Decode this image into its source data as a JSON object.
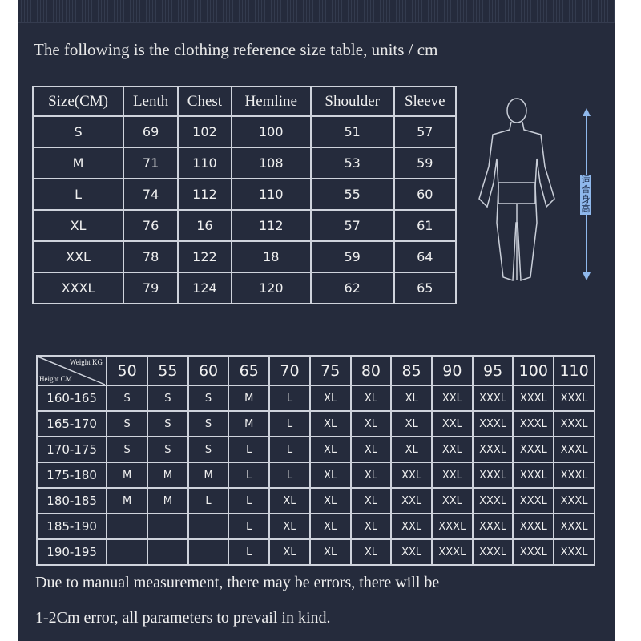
{
  "title": "The following is the clothing reference size table, units / cm",
  "size_table": {
    "headers": [
      "Size(CM)",
      "Lenth",
      "Chest",
      "Hemline",
      "Shoulder",
      "Sleeve"
    ],
    "rows": [
      [
        "S",
        "69",
        "102",
        "100",
        "51",
        "57"
      ],
      [
        "M",
        "71",
        "110",
        "108",
        "53",
        "59"
      ],
      [
        "L",
        "74",
        "112",
        "110",
        "55",
        "60"
      ],
      [
        "XL",
        "76",
        "16",
        "112",
        "57",
        "61"
      ],
      [
        "XXL",
        "78",
        "122",
        "18",
        "59",
        "64"
      ],
      [
        "XXXL",
        "79",
        "124",
        "120",
        "62",
        "65"
      ]
    ]
  },
  "figure": {
    "height_label": "适合身高",
    "arrow_color": "#8fb8ec"
  },
  "fit_table": {
    "weight_label": "Weight KG",
    "height_label": "Height CM",
    "weights": [
      "50",
      "55",
      "60",
      "65",
      "70",
      "75",
      "80",
      "85",
      "90",
      "95",
      "100",
      "110"
    ],
    "rows": [
      {
        "height": "160-165",
        "sizes": [
          "S",
          "S",
          "S",
          "M",
          "L",
          "XL",
          "XL",
          "XL",
          "XXL",
          "XXXL",
          "XXXL",
          "XXXL"
        ]
      },
      {
        "height": "165-170",
        "sizes": [
          "S",
          "S",
          "S",
          "M",
          "L",
          "XL",
          "XL",
          "XL",
          "XXL",
          "XXXL",
          "XXXL",
          "XXXL"
        ]
      },
      {
        "height": "170-175",
        "sizes": [
          "S",
          "S",
          "S",
          "L",
          "L",
          "XL",
          "XL",
          "XL",
          "XXL",
          "XXXL",
          "XXXL",
          "XXXL"
        ]
      },
      {
        "height": "175-180",
        "sizes": [
          "M",
          "M",
          "M",
          "L",
          "L",
          "XL",
          "XL",
          "XXL",
          "XXL",
          "XXXL",
          "XXXL",
          "XXXL"
        ]
      },
      {
        "height": "180-185",
        "sizes": [
          "M",
          "M",
          "L",
          "L",
          "XL",
          "XL",
          "XL",
          "XXL",
          "XXL",
          "XXXL",
          "XXXL",
          "XXXL"
        ]
      },
      {
        "height": "185-190",
        "sizes": [
          "",
          "",
          "",
          "L",
          "XL",
          "XL",
          "XL",
          "XXL",
          "XXXL",
          "XXXL",
          "XXXL",
          "XXXL"
        ]
      },
      {
        "height": "190-195",
        "sizes": [
          "",
          "",
          "",
          "L",
          "XL",
          "XL",
          "XL",
          "XXL",
          "XXXL",
          "XXXL",
          "XXXL",
          "XXXL"
        ]
      }
    ]
  },
  "note": {
    "line1": "Due to manual measurement, there may be errors, there will be",
    "line2": "1-2Cm error, all parameters to prevail in kind."
  }
}
